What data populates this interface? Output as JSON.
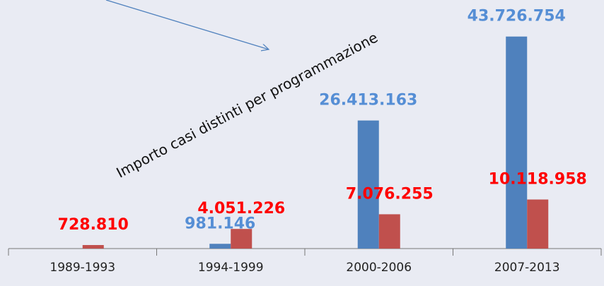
{
  "chart_data": {
    "type": "bar",
    "annotation": "Importo casi distinti per programmazione",
    "categories": [
      "1989-1993",
      "1994-1999",
      "2000-2006",
      "2007-2013"
    ],
    "series": [
      {
        "color": "#4f81bd",
        "label_color": "#558ed5",
        "values": [
          null,
          981146,
          26413163,
          43726754
        ],
        "value_labels": [
          null,
          "981.146",
          "26.413.163",
          "43.726.754"
        ]
      },
      {
        "color": "#c0504d",
        "label_color": "#ff0000",
        "values": [
          728810,
          4051226,
          7076255,
          10118958
        ],
        "value_labels": [
          "728.810",
          "4.051.226",
          "7.076.255",
          "10.118.958"
        ]
      }
    ],
    "ylim": [
      0,
      45000000
    ]
  }
}
